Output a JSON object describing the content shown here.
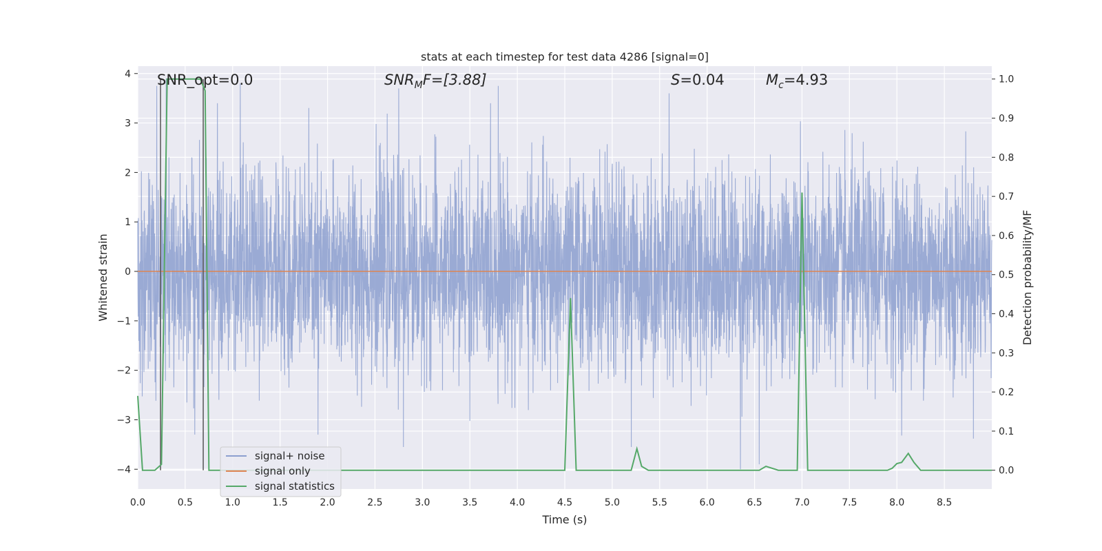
{
  "chart_data": {
    "type": "line",
    "title": "stats at each timestep for test data 4286 [signal=0]",
    "xlabel": "Time (s)",
    "ylabel": "Whitened strain",
    "y2label": "Detection probability/MF",
    "xlim": [
      0.0,
      9.0
    ],
    "ylim": [
      -4.4,
      4.15
    ],
    "y2lim": [
      -0.048,
      1.033
    ],
    "xticks": [
      "0.0",
      "0.5",
      "1.0",
      "1.5",
      "2.0",
      "2.5",
      "3.0",
      "3.5",
      "4.0",
      "4.5",
      "5.0",
      "5.5",
      "6.0",
      "6.5",
      "7.0",
      "7.5",
      "8.0",
      "8.5"
    ],
    "yticks": [
      "4",
      "3",
      "2",
      "1",
      "0",
      "−1",
      "−2",
      "−3",
      "−4"
    ],
    "y2ticks": [
      "1.0",
      "0.9",
      "0.8",
      "0.7",
      "0.6",
      "0.5",
      "0.4",
      "0.3",
      "0.2",
      "0.1",
      "0.0"
    ],
    "annotations": {
      "snr_opt": "SNR_opt=0.0",
      "snr_mf_main": "SNR",
      "snr_mf_sub": "M",
      "snr_mf_rest": "F=[3.88]",
      "s_main": "S",
      "s_rest": "=0.04",
      "mc_main": "M",
      "mc_sub": "c",
      "mc_rest": "=4.93"
    },
    "grid": true,
    "legend_position": "lower-left",
    "series": [
      {
        "name": "signal+ noise",
        "color": "#8c9fcf",
        "type": "noise",
        "points": 4000,
        "sigma": 1.0,
        "peaks": [
          {
            "x": 0.2,
            "y": 3.75
          },
          {
            "x": 0.3,
            "y": 3.9
          },
          {
            "x": 1.08,
            "y": 3.8
          },
          {
            "x": 1.9,
            "y": 3.8
          },
          {
            "x": 2.75,
            "y": 3.7
          },
          {
            "x": 3.8,
            "y": 3.75
          },
          {
            "x": 5.6,
            "y": 3.6
          },
          {
            "x": 6.55,
            "y": 3.5
          },
          {
            "x": 6.35,
            "y": 3.35
          },
          {
            "x": 2.8,
            "y": -3.55
          },
          {
            "x": 5.2,
            "y": -3.55
          },
          {
            "x": 6.35,
            "y": -4.0
          },
          {
            "x": 6.55,
            "y": -3.9
          },
          {
            "x": 0.6,
            "y": -3.3
          },
          {
            "x": 1.9,
            "y": -3.3
          }
        ]
      },
      {
        "name": "signal only",
        "color": "#dd8452",
        "type": "line",
        "x": [
          0.0,
          9.0
        ],
        "y": [
          0.0,
          0.0
        ]
      },
      {
        "name": "signal statistics",
        "color": "#55a868",
        "axis": "right",
        "x": [
          0.0,
          0.05,
          0.18,
          0.25,
          0.31,
          0.66,
          0.71,
          0.75,
          4.5,
          4.56,
          4.62,
          5.2,
          5.26,
          5.31,
          5.38,
          6.55,
          6.62,
          6.75,
          6.95,
          7.0,
          7.06,
          7.9,
          7.95,
          8.0,
          8.05,
          8.12,
          8.18,
          8.25,
          9.0
        ],
        "y": [
          0.19,
          0.0,
          0.0,
          0.015,
          1.0,
          1.0,
          0.97,
          0.0,
          0.0,
          0.44,
          0.0,
          0.0,
          0.055,
          0.01,
          0.0,
          0.0,
          0.01,
          0.0,
          0.0,
          0.71,
          0.0,
          0.0,
          0.005,
          0.017,
          0.02,
          0.043,
          0.02,
          0.0,
          0.0
        ]
      }
    ],
    "vertical_markers": [
      0.24,
      0.69
    ],
    "marker_color": "#555555"
  }
}
